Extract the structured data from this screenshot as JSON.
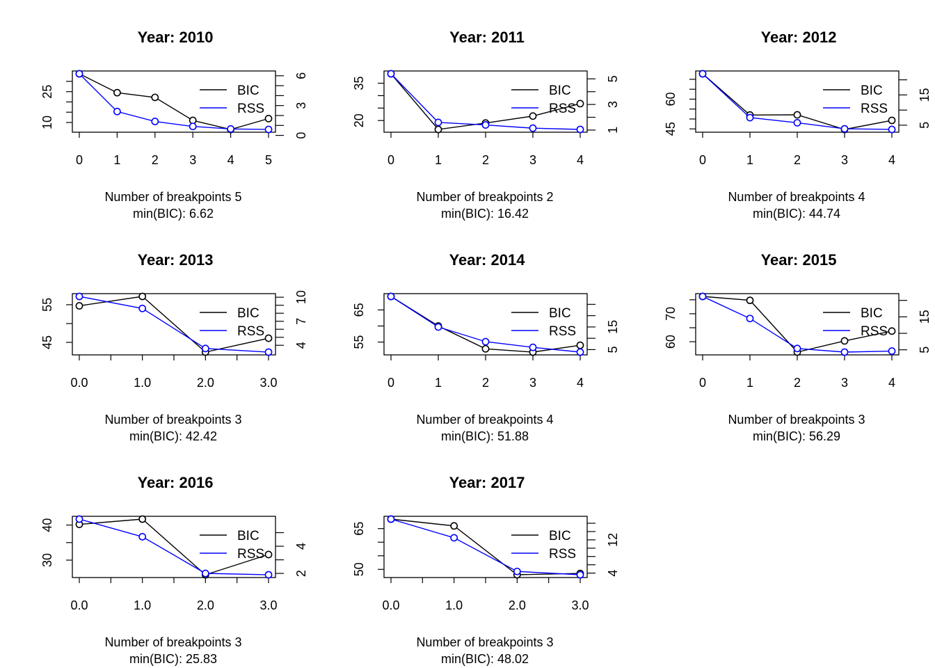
{
  "chart_data": [
    {
      "type": "line",
      "title": "Year: 2010",
      "xlabel_lines": [
        "Number of breakpoints 5",
        "min(BIC): 6.62"
      ],
      "legend": [
        "BIC",
        "RSS"
      ],
      "colors": {
        "BIC": "#000000",
        "RSS": "#0000ff"
      },
      "x": [
        0,
        1,
        2,
        3,
        4,
        5
      ],
      "xticks": [
        "0",
        "1",
        "2",
        "3",
        "4",
        "5"
      ],
      "xlim": [
        0,
        5
      ],
      "ylim_left": [
        6.62,
        33.7
      ],
      "ylim_right": [
        0.6,
        6.2
      ],
      "left_ticks": [
        10,
        15,
        20,
        25,
        30
      ],
      "left_labels": [
        "10",
        "",
        "",
        "25",
        ""
      ],
      "right_ticks": [
        0,
        1,
        2,
        3,
        4,
        5,
        6
      ],
      "right_labels": [
        "0",
        "",
        "",
        "3",
        "",
        "",
        "6"
      ],
      "series": [
        {
          "name": "BIC",
          "axis": "left",
          "values": [
            33.7,
            24.5,
            22.2,
            11.0,
            6.62,
            11.9
          ]
        },
        {
          "name": "RSS",
          "axis": "right",
          "values": [
            6.2,
            2.4,
            1.4,
            0.9,
            0.65,
            0.6
          ]
        }
      ]
    },
    {
      "type": "line",
      "title": "Year: 2011",
      "xlabel_lines": [
        "Number of breakpoints 2",
        "min(BIC): 16.42"
      ],
      "legend": [
        "BIC",
        "RSS"
      ],
      "colors": {
        "BIC": "#000000",
        "RSS": "#0000ff"
      },
      "x": [
        0,
        1,
        2,
        3,
        4
      ],
      "xticks": [
        "0",
        "1",
        "2",
        "3",
        "4"
      ],
      "xlim": [
        0,
        4
      ],
      "ylim_left": [
        16.42,
        38.8
      ],
      "ylim_right": [
        1.05,
        5.4
      ],
      "left_ticks": [
        20,
        25,
        30,
        35
      ],
      "left_labels": [
        "20",
        "",
        "",
        "35"
      ],
      "right_ticks": [
        1,
        2,
        3,
        4,
        5
      ],
      "right_labels": [
        "1",
        "",
        "3",
        "",
        "5"
      ],
      "series": [
        {
          "name": "BIC",
          "axis": "left",
          "values": [
            38.8,
            16.42,
            19.0,
            21.8,
            26.8
          ]
        },
        {
          "name": "RSS",
          "axis": "right",
          "values": [
            5.4,
            1.6,
            1.4,
            1.15,
            1.05
          ]
        }
      ]
    },
    {
      "type": "line",
      "title": "Year: 2012",
      "xlabel_lines": [
        "Number of breakpoints 4",
        "min(BIC): 44.74"
      ],
      "legend": [
        "BIC",
        "RSS"
      ],
      "colors": {
        "BIC": "#000000",
        "RSS": "#0000ff"
      },
      "x": [
        0,
        1,
        2,
        3,
        4
      ],
      "xticks": [
        "0",
        "1",
        "2",
        "3",
        "4"
      ],
      "xlim": [
        0,
        4
      ],
      "ylim_left": [
        44.74,
        72.8
      ],
      "ylim_right": [
        3.6,
        22.0
      ],
      "left_ticks": [
        45,
        50,
        55,
        60,
        65,
        70
      ],
      "left_labels": [
        "45",
        "",
        "",
        "60",
        "",
        ""
      ],
      "right_ticks": [
        5,
        10,
        15,
        20
      ],
      "right_labels": [
        "5",
        "",
        "15",
        ""
      ],
      "series": [
        {
          "name": "BIC",
          "axis": "left",
          "values": [
            72.8,
            52.0,
            52.1,
            44.74,
            49.3
          ]
        },
        {
          "name": "RSS",
          "axis": "right",
          "values": [
            22.0,
            7.5,
            5.8,
            3.8,
            3.6
          ]
        }
      ]
    },
    {
      "type": "line",
      "title": "Year: 2013",
      "xlabel_lines": [
        "Number of breakpoints 3",
        "min(BIC): 42.42"
      ],
      "legend": [
        "BIC",
        "RSS"
      ],
      "colors": {
        "BIC": "#000000",
        "RSS": "#0000ff"
      },
      "x": [
        0,
        1,
        2,
        3
      ],
      "xticks": [
        "0.0",
        "1.0",
        "2.0",
        "3.0"
      ],
      "xlim": [
        0,
        3
      ],
      "ylim_left": [
        42.42,
        57.2
      ],
      "ylim_right": [
        3.15,
        10.1
      ],
      "left_ticks": [
        45,
        50,
        55
      ],
      "left_labels": [
        "45",
        "",
        "55"
      ],
      "right_ticks": [
        4,
        5,
        6,
        7,
        8,
        9,
        10
      ],
      "right_labels": [
        "4",
        "",
        "",
        "7",
        "",
        "",
        "10"
      ],
      "series": [
        {
          "name": "BIC",
          "axis": "left",
          "values": [
            54.7,
            57.2,
            42.42,
            46.1
          ]
        },
        {
          "name": "RSS",
          "axis": "right",
          "values": [
            10.1,
            8.6,
            3.6,
            3.15
          ]
        }
      ]
    },
    {
      "type": "line",
      "title": "Year: 2014",
      "xlabel_lines": [
        "Number of breakpoints 4",
        "min(BIC): 51.88"
      ],
      "legend": [
        "BIC",
        "RSS"
      ],
      "colors": {
        "BIC": "#000000",
        "RSS": "#0000ff"
      },
      "x": [
        0,
        1,
        2,
        3,
        4
      ],
      "xticks": [
        "0",
        "1",
        "2",
        "3",
        "4"
      ],
      "xlim": [
        0,
        4
      ],
      "ylim_left": [
        51.88,
        69.2
      ],
      "ylim_right": [
        3.9,
        28.5
      ],
      "left_ticks": [
        55,
        60,
        65
      ],
      "left_labels": [
        "55",
        "",
        "65"
      ],
      "right_ticks": [
        5,
        10,
        15,
        20,
        25
      ],
      "right_labels": [
        "5",
        "",
        "15",
        "",
        ""
      ],
      "series": [
        {
          "name": "BIC",
          "axis": "left",
          "values": [
            69.2,
            60.0,
            52.9,
            51.88,
            54.0
          ]
        },
        {
          "name": "RSS",
          "axis": "right",
          "values": [
            28.5,
            15.0,
            8.5,
            6.0,
            3.9
          ]
        }
      ]
    },
    {
      "type": "line",
      "title": "Year: 2015",
      "xlabel_lines": [
        "Number of breakpoints 3",
        "min(BIC): 56.29"
      ],
      "legend": [
        "BIC",
        "RSS"
      ],
      "colors": {
        "BIC": "#000000",
        "RSS": "#0000ff"
      },
      "x": [
        0,
        1,
        2,
        3,
        4
      ],
      "xticks": [
        "0",
        "1",
        "2",
        "3",
        "4"
      ],
      "xlim": [
        0,
        4
      ],
      "ylim_left": [
        56.29,
        76.2
      ],
      "ylim_right": [
        4.3,
        21.2
      ],
      "left_ticks": [
        60,
        65,
        70,
        75
      ],
      "left_labels": [
        "60",
        "",
        "70",
        ""
      ],
      "right_ticks": [
        5,
        10,
        15,
        20
      ],
      "right_labels": [
        "5",
        "",
        "15",
        ""
      ],
      "series": [
        {
          "name": "BIC",
          "axis": "left",
          "values": [
            76.2,
            74.8,
            56.29,
            60.3,
            63.8
          ]
        },
        {
          "name": "RSS",
          "axis": "right",
          "values": [
            21.2,
            14.5,
            5.4,
            4.3,
            4.6
          ]
        }
      ]
    },
    {
      "type": "line",
      "title": "Year: 2016",
      "xlabel_lines": [
        "Number of breakpoints 3",
        "min(BIC): 25.83"
      ],
      "legend": [
        "BIC",
        "RSS"
      ],
      "colors": {
        "BIC": "#000000",
        "RSS": "#0000ff"
      },
      "x": [
        0,
        1,
        2,
        3
      ],
      "xticks": [
        "0.0",
        "1.0",
        "2.0",
        "3.0"
      ],
      "xlim": [
        0,
        3
      ],
      "ylim_left": [
        25.83,
        41.7
      ],
      "ylim_right": [
        1.9,
        6.0
      ],
      "left_ticks": [
        30,
        35,
        40
      ],
      "left_labels": [
        "30",
        "",
        "40"
      ],
      "right_ticks": [
        2,
        3,
        4,
        5
      ],
      "right_labels": [
        "2",
        "",
        "4",
        ""
      ],
      "series": [
        {
          "name": "BIC",
          "axis": "left",
          "values": [
            40.2,
            41.7,
            25.83,
            31.6
          ]
        },
        {
          "name": "RSS",
          "axis": "right",
          "values": [
            6.0,
            4.7,
            2.0,
            1.9
          ]
        }
      ]
    },
    {
      "type": "line",
      "title": "Year: 2017",
      "xlabel_lines": [
        "Number of breakpoints 3",
        "min(BIC): 48.02"
      ],
      "legend": [
        "BIC",
        "RSS"
      ],
      "colors": {
        "BIC": "#000000",
        "RSS": "#0000ff"
      },
      "x": [
        0,
        1,
        2,
        3
      ],
      "xticks": [
        "0.0",
        "1.0",
        "2.0",
        "3.0"
      ],
      "xlim": [
        0,
        3
      ],
      "ylim_left": [
        48.02,
        68.5
      ],
      "ylim_right": [
        3.6,
        17.0
      ],
      "left_ticks": [
        50,
        55,
        60,
        65
      ],
      "left_labels": [
        "50",
        "",
        "",
        "65"
      ],
      "right_ticks": [
        4,
        6,
        8,
        10,
        12,
        14,
        16
      ],
      "right_labels": [
        "4",
        "",
        "",
        "",
        "12",
        "",
        ""
      ],
      "series": [
        {
          "name": "BIC",
          "axis": "left",
          "values": [
            68.5,
            66.0,
            48.02,
            48.5
          ]
        },
        {
          "name": "RSS",
          "axis": "right",
          "values": [
            17.0,
            12.5,
            4.4,
            3.6
          ]
        }
      ]
    }
  ]
}
